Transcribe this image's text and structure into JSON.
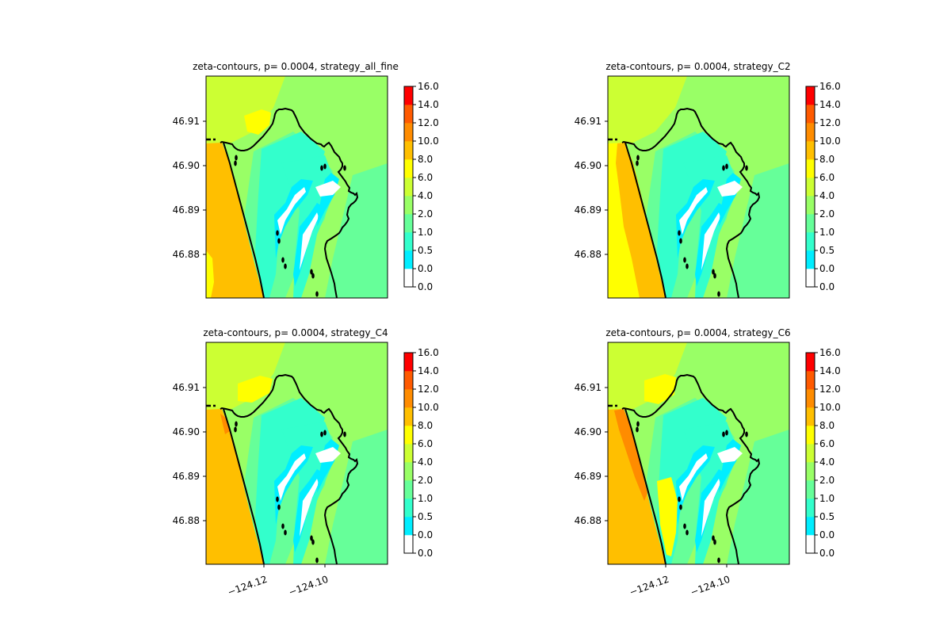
{
  "chart_data": [
    {
      "type": "heatmap",
      "title": "zeta-contours, p= 0.0004, strategy_all_fine",
      "variant": "all_fine",
      "yticks": [
        "46.91",
        "46.90",
        "46.89",
        "46.88"
      ],
      "xticks": [],
      "colorbar_levels": [
        "0.0",
        "0.0",
        "0.5",
        "1.0",
        "2.0",
        "4.0",
        "6.0",
        "8.0",
        "10.0",
        "12.0",
        "14.0",
        "16.0"
      ]
    },
    {
      "type": "heatmap",
      "title": "zeta-contours, p= 0.0004, strategy_C2",
      "variant": "C2",
      "yticks": [
        "46.91",
        "46.90",
        "46.89",
        "46.88"
      ],
      "xticks": [],
      "colorbar_levels": [
        "0.0",
        "0.0",
        "0.5",
        "1.0",
        "2.0",
        "4.0",
        "6.0",
        "8.0",
        "10.0",
        "12.0",
        "14.0",
        "16.0"
      ]
    },
    {
      "type": "heatmap",
      "title": "zeta-contours, p= 0.0004, strategy_C4",
      "variant": "C4",
      "yticks": [
        "46.91",
        "46.90",
        "46.89",
        "46.88"
      ],
      "xticks": [
        "−124.12",
        "−124.10"
      ],
      "colorbar_levels": [
        "0.0",
        "0.0",
        "0.5",
        "1.0",
        "2.0",
        "4.0",
        "6.0",
        "8.0",
        "10.0",
        "12.0",
        "14.0",
        "16.0"
      ]
    },
    {
      "type": "heatmap",
      "title": "zeta-contours, p= 0.0004, strategy_C6",
      "variant": "C6",
      "yticks": [
        "46.91",
        "46.90",
        "46.89",
        "46.88"
      ],
      "xticks": [
        "−124.12",
        "−124.10"
      ],
      "colorbar_levels": [
        "0.0",
        "0.0",
        "0.5",
        "1.0",
        "2.0",
        "4.0",
        "6.0",
        "8.0",
        "10.0",
        "12.0",
        "14.0",
        "16.0"
      ]
    }
  ],
  "colormap": [
    "#ffffff",
    "#00eeff",
    "#33ffcc",
    "#66ff99",
    "#99ff66",
    "#ccff33",
    "#ffff00",
    "#ffbf00",
    "#ff8c00",
    "#ff5a00",
    "#ff0000"
  ]
}
